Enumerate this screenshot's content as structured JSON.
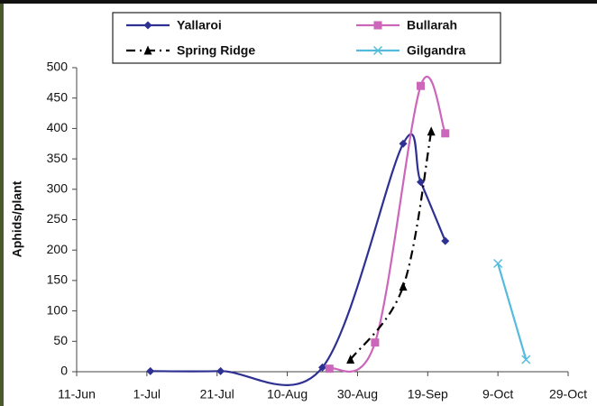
{
  "chart_data": {
    "type": "line",
    "ylabel": "Aphids/plant",
    "xlim": [
      162,
      302
    ],
    "xticks": [
      {
        "value": 162,
        "label": "11-Jun"
      },
      {
        "value": 182,
        "label": "1-Jul"
      },
      {
        "value": 202,
        "label": "21-Jul"
      },
      {
        "value": 222,
        "label": "10-Aug"
      },
      {
        "value": 242,
        "label": "30-Aug"
      },
      {
        "value": 262,
        "label": "19-Sep"
      },
      {
        "value": 282,
        "label": "9-Oct"
      },
      {
        "value": 302,
        "label": "29-Oct"
      }
    ],
    "ylim": [
      0,
      500
    ],
    "yticks": [
      0,
      50,
      100,
      150,
      200,
      250,
      300,
      350,
      400,
      450,
      500
    ],
    "grid": false,
    "series": [
      {
        "name": "Yallaroi",
        "color": "#2e3192",
        "marker": "diamond",
        "dash": "solid",
        "x": [
          183,
          203,
          232,
          255,
          260,
          267
        ],
        "values": [
          1,
          1,
          7,
          375,
          312,
          215
        ]
      },
      {
        "name": "Bullarah",
        "color": "#cc66bb",
        "marker": "square",
        "dash": "solid",
        "x": [
          234,
          247,
          260,
          267
        ],
        "values": [
          5,
          48,
          470,
          392
        ]
      },
      {
        "name": "Spring Ridge",
        "color": "#000000",
        "marker": "triangle",
        "dash": "dashdot",
        "x": [
          240,
          255,
          263
        ],
        "values": [
          20,
          140,
          395
        ]
      },
      {
        "name": "Gilgandra",
        "color": "#55bbdd",
        "marker": "cross",
        "dash": "solid",
        "x": [
          282,
          290
        ],
        "values": [
          178,
          20
        ]
      }
    ]
  }
}
